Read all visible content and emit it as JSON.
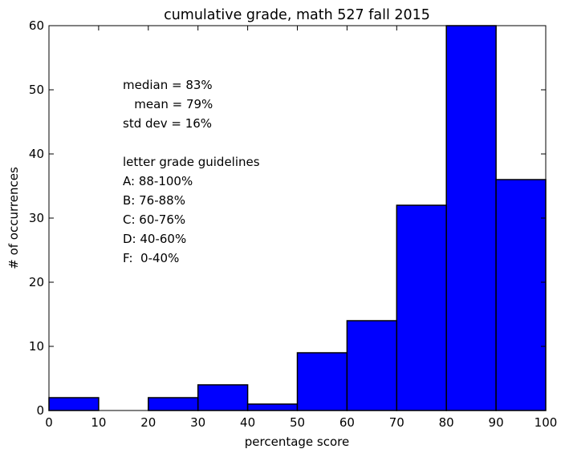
{
  "chart_data": {
    "type": "bar",
    "title": "cumulative grade, math 527 fall 2015",
    "xlabel": "percentage score",
    "ylabel": "# of occurrences",
    "xlim": [
      0,
      100
    ],
    "ylim": [
      0,
      60
    ],
    "bin_edges": [
      0,
      10,
      20,
      30,
      40,
      50,
      60,
      70,
      80,
      90,
      100
    ],
    "values": [
      2,
      0,
      2,
      4,
      1,
      9,
      14,
      32,
      60,
      36
    ],
    "xticks": [
      "0",
      "10",
      "20",
      "30",
      "40",
      "50",
      "60",
      "70",
      "80",
      "90",
      "100"
    ],
    "yticks": [
      "0",
      "10",
      "20",
      "30",
      "40",
      "50",
      "60"
    ],
    "bar_color": "#0000ff",
    "grid": false,
    "annotations": [
      "median = 83%",
      "   mean = 79%",
      "std dev = 16%",
      "",
      "letter grade guidelines",
      "A: 88-100%",
      "B: 76-88%",
      "C: 60-76%",
      "D: 40-60%",
      "F:  0-40%"
    ]
  }
}
